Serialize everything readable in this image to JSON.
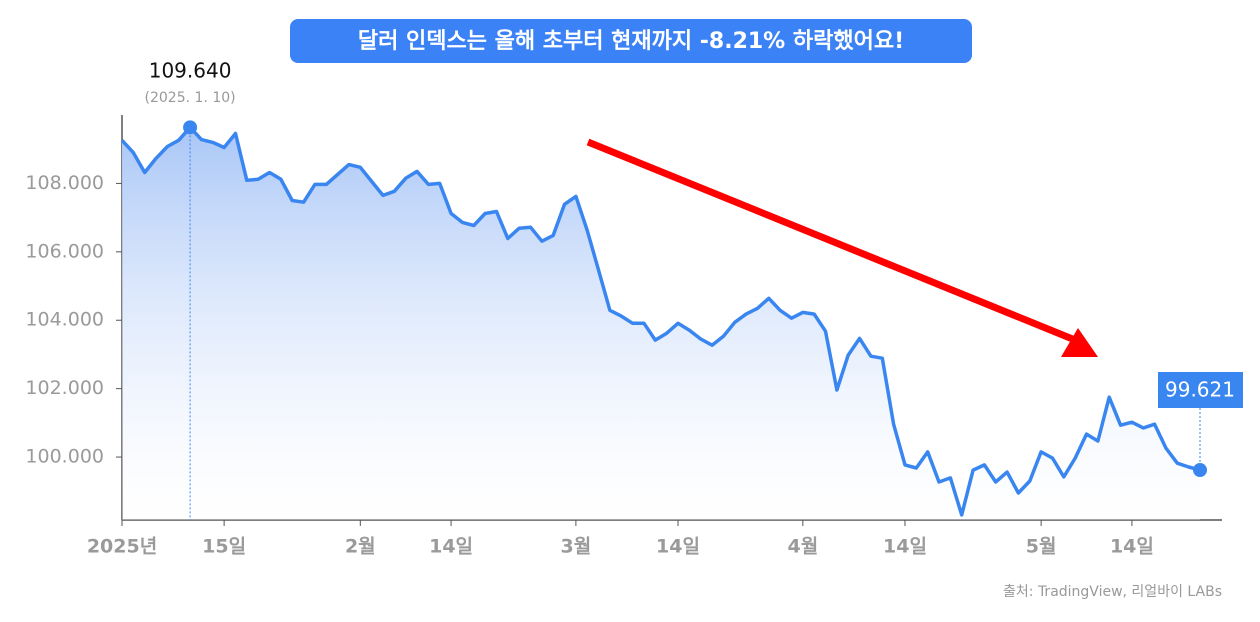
{
  "chart_data": {
    "type": "line",
    "title": "달러 인덱스는 올해 초부터 현재까지 -8.21% 하락했어요!",
    "source": "출처: TradingView, 리얼바이 LABs",
    "categories": [
      "2025년",
      null,
      null,
      null,
      null,
      null,
      null,
      null,
      null,
      "15일",
      null,
      null,
      null,
      null,
      null,
      null,
      null,
      null,
      null,
      null,
      null,
      "2월",
      null,
      null,
      null,
      null,
      null,
      null,
      null,
      "14일",
      null,
      null,
      null,
      null,
      null,
      null,
      null,
      null,
      null,
      null,
      "3월",
      null,
      null,
      null,
      null,
      null,
      null,
      null,
      null,
      "14일",
      null,
      null,
      null,
      null,
      null,
      null,
      null,
      null,
      null,
      null,
      "4월",
      null,
      null,
      null,
      null,
      null,
      null,
      null,
      null,
      "14일",
      null,
      null,
      null,
      null,
      null,
      null,
      null,
      null,
      null,
      null,
      null,
      "5월",
      null,
      null,
      null,
      null,
      null,
      null,
      null,
      "14일",
      null,
      null,
      null,
      null,
      null,
      null
    ],
    "series": [
      {
        "name": "달러 인덱스",
        "color": "#3a86f0",
        "values": [
          109.26,
          108.9,
          108.32,
          108.73,
          109.08,
          109.26,
          109.64,
          109.28,
          109.2,
          109.05,
          109.46,
          108.09,
          108.12,
          108.32,
          108.12,
          107.5,
          107.45,
          107.97,
          107.97,
          108.26,
          108.55,
          108.47,
          108.06,
          107.65,
          107.77,
          108.15,
          108.35,
          107.97,
          108.0,
          107.12,
          106.86,
          106.77,
          107.12,
          107.18,
          106.39,
          106.69,
          106.72,
          106.31,
          106.48,
          107.39,
          107.62,
          106.63,
          105.46,
          104.29,
          104.12,
          103.91,
          103.91,
          103.42,
          103.62,
          103.91,
          103.71,
          103.45,
          103.27,
          103.53,
          103.94,
          104.18,
          104.35,
          104.64,
          104.29,
          104.06,
          104.23,
          104.18,
          103.68,
          101.96,
          102.98,
          103.47,
          102.95,
          102.89,
          100.96,
          99.77,
          99.68,
          100.15,
          99.27,
          99.39,
          98.31,
          99.62,
          99.77,
          99.27,
          99.56,
          98.95,
          99.3,
          100.15,
          99.97,
          99.42,
          99.97,
          100.67,
          100.47,
          101.75,
          100.93,
          101.02,
          100.85,
          100.96,
          100.26,
          99.82,
          99.71,
          99.621
        ],
        "value_labels": [
          null,
          null,
          null,
          null,
          null,
          null,
          "109.640",
          null,
          null,
          null,
          null,
          null,
          null,
          null,
          null,
          null,
          null,
          null,
          null,
          null,
          null,
          null,
          null,
          null,
          null,
          null,
          null,
          null,
          null,
          null,
          null,
          null,
          null,
          null,
          null,
          null,
          null,
          null,
          null,
          null,
          null,
          null,
          null,
          null,
          null,
          null,
          null,
          null,
          null,
          null,
          null,
          null,
          null,
          null,
          null,
          null,
          null,
          null,
          null,
          null,
          null,
          null,
          null,
          null,
          null,
          null,
          null,
          null,
          null,
          null,
          null,
          null,
          null,
          null,
          null,
          null,
          null,
          null,
          null,
          null,
          null,
          null,
          null,
          null,
          null,
          null,
          null,
          null,
          null,
          null,
          null,
          null,
          null,
          null,
          null,
          "99.621"
        ]
      }
    ],
    "annotations": [
      "(2025. 1. 10)"
    ],
    "ylim": [
      98.16,
      110
    ],
    "yticks": [
      {
        "value": 100,
        "label": "100.000"
      },
      {
        "value": 102,
        "label": "102.000"
      },
      {
        "value": 104,
        "label": "104.000"
      },
      {
        "value": 106,
        "label": "106.000"
      },
      {
        "value": 108,
        "label": "108.000"
      }
    ],
    "grid": false
  }
}
